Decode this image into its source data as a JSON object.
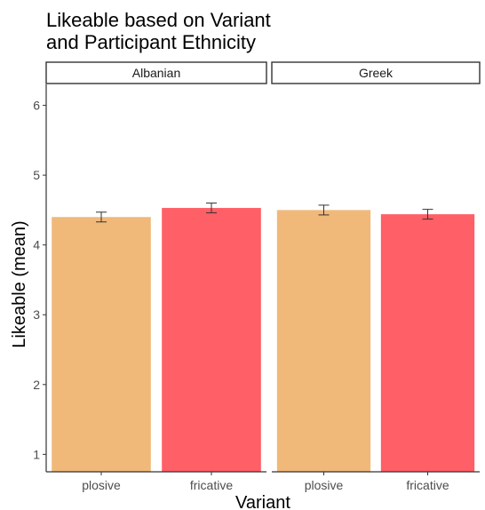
{
  "chart_data": {
    "type": "bar",
    "title": "Likeable based on Variant\nand Participant Ethnicity",
    "xlabel": "Variant",
    "ylabel": "Likeable (mean)",
    "ylim": [
      0.75,
      6.3
    ],
    "yticks": [
      1,
      2,
      3,
      4,
      5,
      6
    ],
    "categories": [
      "plosive",
      "fricative"
    ],
    "colors": {
      "plosive": "#F0B97A",
      "fricative": "#FF5F66"
    },
    "grid": false,
    "legend": "none",
    "facets": [
      {
        "name": "Albanian",
        "values": [
          4.4,
          4.53
        ],
        "errors": [
          [
            4.33,
            4.47
          ],
          [
            4.46,
            4.6
          ]
        ]
      },
      {
        "name": "Greek",
        "values": [
          4.5,
          4.44
        ],
        "errors": [
          [
            4.43,
            4.57
          ],
          [
            4.37,
            4.51
          ]
        ]
      }
    ]
  }
}
